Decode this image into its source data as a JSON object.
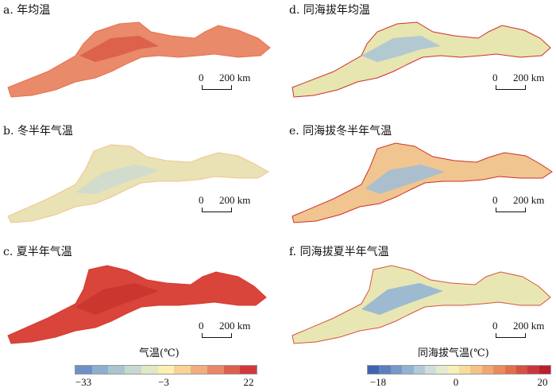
{
  "panels": [
    {
      "title": "a. 年均温",
      "scale_zero": "0",
      "scale_dist": "200 km",
      "colors": [
        "#e98a6a",
        "#d95a46",
        "#f0b58a",
        "#c9d7c5",
        "#e7e5b8",
        "#e9704f"
      ]
    },
    {
      "title": "b. 冬半年气温",
      "scale_zero": "0",
      "scale_dist": "200 km",
      "colors": [
        "#e8e2b4",
        "#cddbd0",
        "#8ab0cc",
        "#f0d4a0",
        "#e5eacb",
        "#f2c592"
      ]
    },
    {
      "title": "c. 夏半年气温",
      "scale_zero": "0",
      "scale_dist": "200 km",
      "colors": [
        "#d9453a",
        "#c8342e",
        "#ec8e66",
        "#e26b4f",
        "#f2b392",
        "#d73a30"
      ]
    },
    {
      "title": "d. 同海拔年均温",
      "scale_zero": "0",
      "scale_dist": "200 km",
      "colors": [
        "#e7e5b0",
        "#a9c4d8",
        "#d7e3d1",
        "#f0c18c",
        "#e08460",
        "#cf2f2a"
      ]
    },
    {
      "title": "e. 同海拔冬半年气温",
      "scale_zero": "0",
      "scale_dist": "200 km",
      "colors": [
        "#f0c58f",
        "#9fbcd9",
        "#c7d8dc",
        "#eeaa78",
        "#e27355",
        "#cf2f2a"
      ]
    },
    {
      "title": "f. 同海拔夏半年气温",
      "scale_zero": "0",
      "scale_dist": "200 km",
      "colors": [
        "#e8e7b4",
        "#8fb1d5",
        "#d5e0c8",
        "#f3c990",
        "#ea8a63",
        "#d9533c"
      ]
    }
  ],
  "legend_left": {
    "title": "气温(℃)",
    "ticks": [
      "−33",
      "−3",
      "22"
    ],
    "colors": [
      "#6f90c6",
      "#8dafcd",
      "#a9c5d0",
      "#c6d9cf",
      "#e2e8c4",
      "#fbf0b2",
      "#f8d296",
      "#f1ad7d",
      "#e88867",
      "#dd5f4e",
      "#d2383a"
    ]
  },
  "legend_right": {
    "title": "同海拔气温(℃)",
    "ticks": [
      "−18",
      "0",
      "20"
    ],
    "colors": [
      "#3e63b0",
      "#5a80be",
      "#7698c9",
      "#93b1d2",
      "#b1c9d9",
      "#cfdedc",
      "#e5eccd",
      "#f5f1b6",
      "#f8dc9e",
      "#f5c285",
      "#f0a76f",
      "#ea8b5e",
      "#e06e4f",
      "#d55243",
      "#ca373a",
      "#bd1e2e"
    ]
  }
}
